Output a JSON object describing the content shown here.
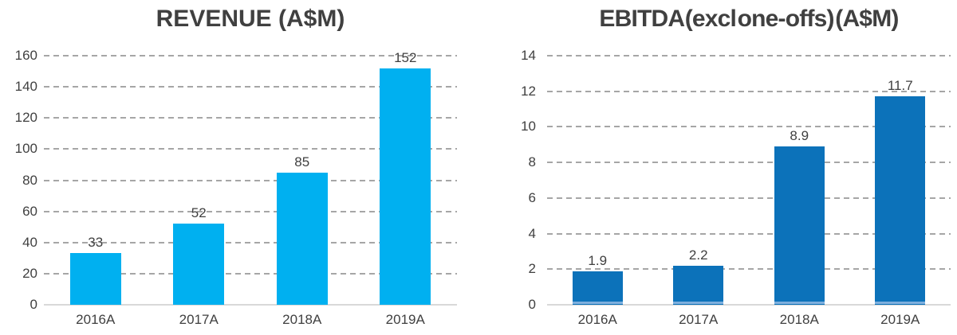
{
  "page": {
    "background": "#ffffff"
  },
  "colors": {
    "text": "#404040",
    "gridline": "#a6a6a6",
    "axis_line": "#d9d9d9"
  },
  "chart_data": [
    {
      "type": "bar",
      "title": "REVENUE (A$M)",
      "categories": [
        "2016A",
        "2017A",
        "2018A",
        "2019A"
      ],
      "values": [
        33,
        52,
        85,
        152
      ],
      "value_labels": [
        "33",
        "52",
        "85",
        "152"
      ],
      "ylim": [
        0,
        160
      ],
      "ytick_step": 20,
      "yticks": [
        "0",
        "20",
        "40",
        "60",
        "80",
        "100",
        "120",
        "140",
        "160"
      ],
      "bar_color": "#00b0f0",
      "grid": "dashed-horizontal",
      "legend": "none",
      "xlabel": "",
      "ylabel": ""
    },
    {
      "type": "bar",
      "title": "EBITDA (excl one-offs) (A$M)",
      "categories": [
        "2016A",
        "2017A",
        "2018A",
        "2019A"
      ],
      "values": [
        1.9,
        2.2,
        8.9,
        11.7
      ],
      "value_labels": [
        "1.9",
        "2.2",
        "8.9",
        "11.7"
      ],
      "ylim": [
        0,
        14
      ],
      "ytick_step": 2,
      "yticks": [
        "0",
        "2",
        "4",
        "6",
        "8",
        "10",
        "12",
        "14"
      ],
      "bar_color": "#0c72ba",
      "bar_base_strip_color": "#7fafdd",
      "grid": "dashed-horizontal",
      "legend": "none",
      "xlabel": "",
      "ylabel": ""
    }
  ]
}
